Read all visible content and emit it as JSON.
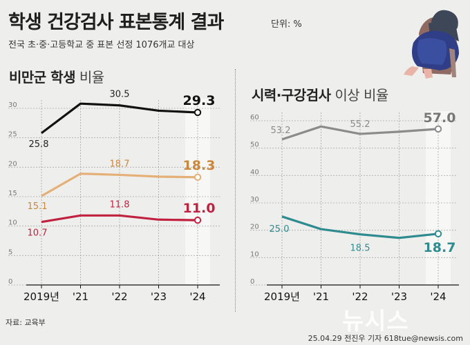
{
  "header": {
    "title": "학생 건강검사 표본통계 결과",
    "unit": "단위: %",
    "subtitle": "전국 초·중·고등학교 중 표본 선정 1076개교 대상"
  },
  "footer": {
    "source": "자료: 교육부",
    "credit": "25.04.29 전진우 기자 618tue@newsis.com",
    "watermark": "뉴시스"
  },
  "colors": {
    "black": "#111111",
    "tan": "#e4b078",
    "red": "#c0213e",
    "gray": "#8b8b8b",
    "teal": "#2e8b8f",
    "highlight": "#ffffff"
  },
  "chart_data": [
    {
      "type": "line",
      "title_bold": "비만군 학생",
      "title_light": "비율",
      "categories": [
        "2019년",
        "'21",
        "'22",
        "'23",
        "'24"
      ],
      "ylim": [
        0,
        30
      ],
      "yticks": [
        "0",
        "5",
        "10",
        "15",
        "20",
        "25",
        "30"
      ],
      "series": [
        {
          "values": [
            25.8,
            30.8,
            30.5,
            29.6,
            29.3
          ],
          "labels": [
            "25.8",
            "",
            "30.5",
            "",
            "29.3"
          ],
          "color": "#111111",
          "labelColor": "#222222",
          "lastColor": "#111111"
        },
        {
          "values": [
            15.1,
            18.9,
            18.7,
            18.4,
            18.3
          ],
          "labels": [
            "15.1",
            "",
            "18.7",
            "",
            "18.3"
          ],
          "color": "#e4b078",
          "labelColor": "#c9873e",
          "lastColor": "#c9873e"
        },
        {
          "values": [
            10.7,
            11.8,
            11.8,
            11.1,
            11.0
          ],
          "labels": [
            "10.7",
            "",
            "11.8",
            "",
            "11.0"
          ],
          "color": "#c0213e",
          "labelColor": "#c0213e",
          "lastColor": "#c0213e"
        }
      ]
    },
    {
      "type": "line",
      "title_bold": "시력·구강검사",
      "title_light": "이상 비율",
      "categories": [
        "2019년",
        "'21",
        "'22",
        "'23",
        "'24"
      ],
      "ylim": [
        0,
        60
      ],
      "yticks": [
        "0",
        "10",
        "20",
        "30",
        "40",
        "50",
        "60"
      ],
      "series": [
        {
          "values": [
            53.2,
            57.9,
            55.2,
            56.0,
            57.0
          ],
          "labels": [
            "53.2",
            "",
            "55.2",
            "",
            "57.0"
          ],
          "color": "#8b8b8b",
          "labelColor": "#8b8b8b",
          "lastColor": "#777777"
        },
        {
          "values": [
            25.0,
            20.4,
            18.5,
            17.2,
            18.7
          ],
          "labels": [
            "25.0",
            "",
            "18.5",
            "",
            "18.7"
          ],
          "color": "#2e8b8f",
          "labelColor": "#2e8b8f",
          "lastColor": "#2e8b8f"
        }
      ]
    }
  ]
}
